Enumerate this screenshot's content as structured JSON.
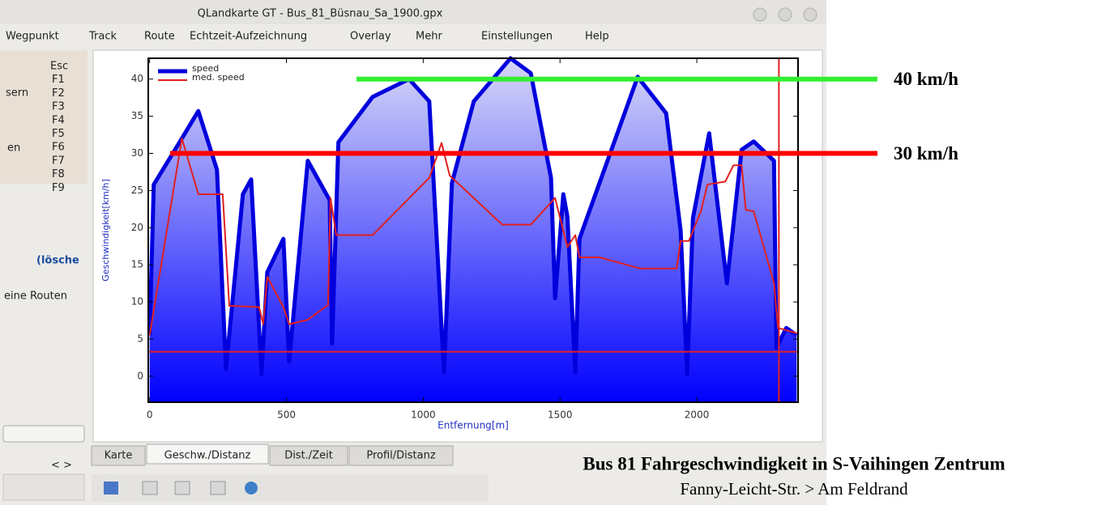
{
  "window_title": "QLandkarte GT - Bus_81_Büsnau_Sa_1900.gpx",
  "menu": [
    "Wegpunkt",
    "Track",
    "Route",
    "Echtzeit-Aufzeichnung",
    "Overlay",
    "Mehr",
    "Einstellungen",
    "Help"
  ],
  "sidebar": {
    "keys": [
      "Esc",
      "F1",
      "F2",
      "F3",
      "F4",
      "F5",
      "F6",
      "F7",
      "F8",
      "F9"
    ],
    "fragment_1": "sern",
    "fragment_2": "en",
    "link": "(lösche",
    "routes": "eine Routen",
    "nav": "< >"
  },
  "tabs": [
    "Karte",
    "Geschw./Distanz",
    "Dist./Zeit",
    "Profil/Distanz"
  ],
  "chart_data": {
    "type": "line",
    "x_label": "Entfernung[m]",
    "y_label": "Geschwindigkeit[km/h]",
    "xlim": [
      -5,
      2370
    ],
    "ylim": [
      -3.5,
      42.8
    ],
    "xticks": [
      0,
      500,
      1000,
      1500,
      2000
    ],
    "yticks": [
      0,
      5,
      10,
      15,
      20,
      25,
      30,
      35,
      40
    ],
    "legend": "top-left",
    "series": [
      {
        "name": "speed",
        "color": "#0000dd",
        "x": [
          0,
          15,
          118,
          178,
          246,
          279,
          341,
          371,
          409,
          430,
          489,
          510,
          578,
          658,
          667,
          690,
          815,
          948,
          1022,
          1076,
          1105,
          1185,
          1319,
          1393,
          1467,
          1482,
          1512,
          1527,
          1556,
          1571,
          1784,
          1888,
          1941,
          1965,
          1986,
          2045,
          2110,
          2164,
          2208,
          2282,
          2291,
          2327,
          2365
        ],
        "values": [
          5.5,
          25.8,
          32,
          35.7,
          27.8,
          1,
          24.5,
          26.5,
          0.3,
          14,
          18.5,
          2,
          29,
          23.7,
          4.4,
          31.5,
          37.6,
          40,
          37,
          0.5,
          26,
          37,
          42.8,
          40.8,
          26.7,
          10.5,
          24.5,
          21.5,
          0.5,
          18.5,
          40.3,
          35.4,
          19.6,
          0.3,
          21.3,
          32.7,
          12.5,
          30.5,
          31.6,
          29,
          3.8,
          6.5,
          5.5
        ]
      },
      {
        "name": "med. speed",
        "color": "#e02020",
        "x": [
          0,
          118,
          178,
          267,
          291,
          400,
          415,
          430,
          489,
          510,
          578,
          652,
          661,
          682,
          815,
          1022,
          1067,
          1097,
          1289,
          1393,
          1482,
          1527,
          1556,
          1571,
          1645,
          1793,
          1926,
          1941,
          1971,
          2015,
          2039,
          2104,
          2134,
          2164,
          2179,
          2208,
          2282,
          2297,
          2365
        ],
        "values": [
          5.5,
          32,
          24.5,
          24.5,
          9.5,
          9.3,
          7,
          13.4,
          9.3,
          7,
          7.6,
          9.6,
          24,
          19,
          19,
          26.7,
          31.4,
          27,
          20.4,
          20.4,
          24,
          17.4,
          19,
          16,
          16,
          14.5,
          14.5,
          18.2,
          18.2,
          22.2,
          25.8,
          26.2,
          28.4,
          28.4,
          22.4,
          22.2,
          12.5,
          6.5,
          5.8
        ]
      }
    ],
    "hline": 3.3,
    "vline": 2300,
    "annotations": [
      {
        "label": "40 km/h",
        "value": 40,
        "color": "#33ee33"
      },
      {
        "label": "30 km/h",
        "value": 30,
        "color": "#ff0000"
      }
    ]
  },
  "caption": {
    "title": "Bus 81 Fahrgeschwindigkeit in S-Vaihingen Zentrum",
    "subtitle": "Fanny-Leicht-Str.  > Am Feldrand"
  }
}
